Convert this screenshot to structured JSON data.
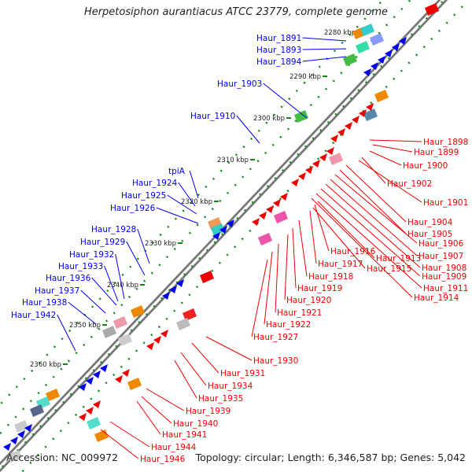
{
  "title": "Herpetosiphon aurantiacus ATCC 23779, complete genome",
  "footer": {
    "accession": "Accession: NC_009972",
    "topology": "Topology: circular; Length: 6,346,587 bp; Genes: 5,042"
  },
  "colors": {
    "forward_strand": "#0000ee",
    "reverse_strand": "#ee0000",
    "backbone": "#777777",
    "tick": "#118811"
  },
  "ticks": [
    "2280 kbp",
    "2290 kbp",
    "2300 kbp",
    "2310 kbp",
    "2320 kbp",
    "2330 kbp",
    "2340 kbp",
    "2350 kbp",
    "2360 kbp"
  ],
  "forward_genes": [
    "Haur_1891",
    "Haur_1893",
    "Haur_1894",
    "Haur_1903",
    "Haur_1910",
    "tpiA",
    "Haur_1924",
    "Haur_1925",
    "Haur_1926",
    "Haur_1928",
    "Haur_1929",
    "Haur_1932",
    "Haur_1933",
    "Haur_1936",
    "Haur_1937",
    "Haur_1938",
    "Haur_1942"
  ],
  "reverse_genes": [
    "Haur_1898",
    "Haur_1899",
    "Haur_1900",
    "Haur_1902",
    "Haur_1901",
    "Haur_1904",
    "Haur_1905",
    "Haur_1906",
    "Haur_1907",
    "Haur_1908",
    "Haur_1909",
    "Haur_1911",
    "Haur_1914",
    "Haur_1916",
    "Haur_1913",
    "Haur_1917",
    "Haur_1915",
    "Haur_1918",
    "Haur_1919",
    "Haur_1920",
    "Haur_1921",
    "Haur_1922",
    "Haur_1927",
    "Haur_1930",
    "Haur_1931",
    "Haur_1934",
    "Haur_1935",
    "Haur_1939",
    "Haur_1940",
    "Haur_1941",
    "Haur_1944",
    "Haur_1946"
  ]
}
